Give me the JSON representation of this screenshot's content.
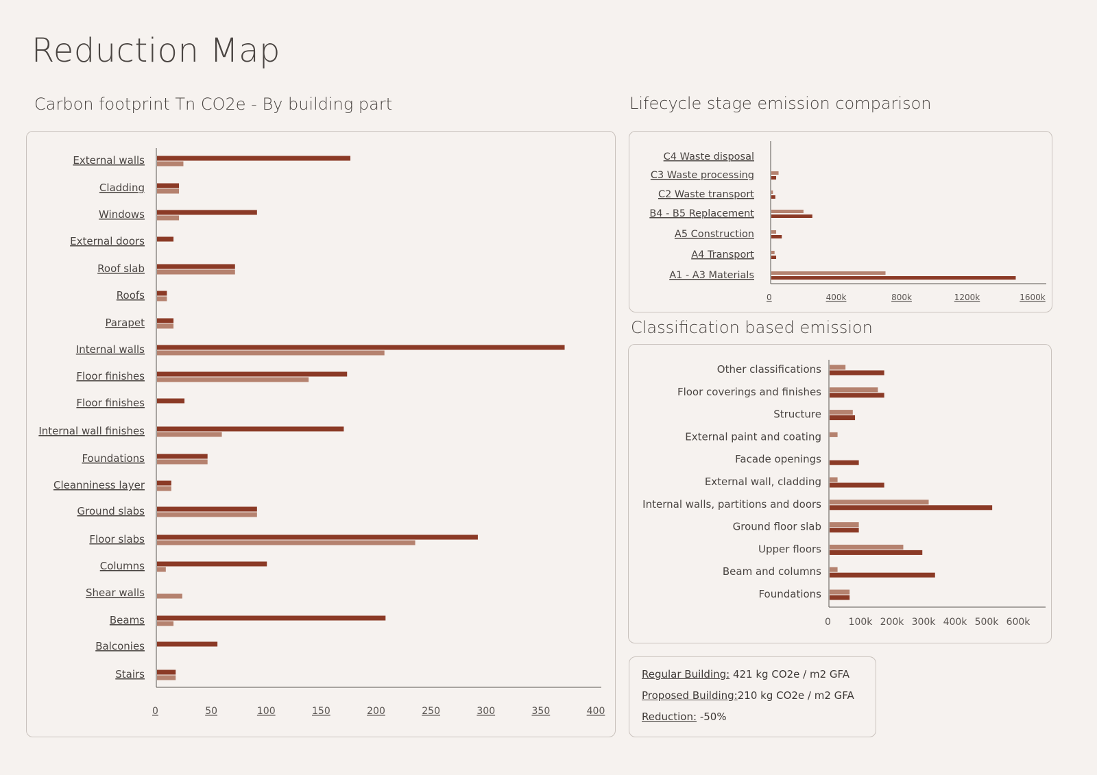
{
  "page": {
    "title": "Reduction Map"
  },
  "colors": {
    "regular": "#8b3a26",
    "proposed": "#b5826f",
    "axis": "#5a5552",
    "label": "#4a4542",
    "background": "#f6f2ef"
  },
  "sections": {
    "building_part_title": "Carbon footprint Tn CO2e - By building part",
    "lifecycle_title": "Lifecycle stage emission comparison",
    "classification_title": "Classification based emission"
  },
  "summary": {
    "regular_label": "Regular Building:",
    "regular_value": " 421 kg CO2e / m2 GFA",
    "proposed_label": "Proposed Building:",
    "proposed_value": "210 kg CO2e / m2 GFA",
    "reduction_label": "Reduction:",
    "reduction_value": " -50%"
  },
  "chart_data": [
    {
      "id": "building-part",
      "type": "bar",
      "orientation": "horizontal",
      "title": "Carbon footprint Tn CO2e - By building part",
      "categories": [
        "External walls",
        "Cladding",
        "Windows",
        "External doors",
        "Roof slab",
        "Roofs",
        "Parapet",
        "Internal walls",
        "Floor finishes",
        "Floor finishes",
        "Internal wall finishes",
        "Foundations",
        "Cleanniness layer",
        "Ground slabs",
        "Floor slabs",
        "Columns",
        "Shear walls",
        "Beams",
        "Balconies",
        "Stairs"
      ],
      "series": [
        {
          "name": "Regular",
          "values": [
            176,
            20,
            91,
            15,
            71,
            9,
            15,
            371,
            173,
            25,
            170,
            46,
            13,
            91,
            292,
            100,
            0,
            208,
            55,
            17
          ]
        },
        {
          "name": "Proposed",
          "values": [
            24,
            20,
            20,
            0,
            71,
            9,
            15,
            207,
            138,
            0,
            59,
            46,
            13,
            91,
            235,
            8,
            23,
            15,
            0,
            17
          ]
        }
      ],
      "xlim": [
        0,
        400
      ],
      "xticks": [
        "0",
        "50",
        "100",
        "150",
        "200",
        "250",
        "300",
        "350",
        "400"
      ]
    },
    {
      "id": "lifecycle",
      "type": "bar",
      "orientation": "horizontal",
      "title": "Lifecycle stage emission comparison",
      "categories": [
        "C4 Waste disposal",
        "C3 Waste processing",
        "C2 Waste transport",
        "B4 - B5 Replacement",
        "A5 Construction",
        "A4 Transport",
        "A1 - A3 Materials"
      ],
      "series": [
        {
          "name": "Proposed",
          "values": [
            0,
            45,
            10,
            200,
            30,
            20,
            710
          ]
        },
        {
          "name": "Regular",
          "values": [
            0,
            30,
            25,
            255,
            65,
            30,
            1520
          ]
        }
      ],
      "xlim": [
        0,
        1680
      ],
      "xticks": [
        "0",
        "400k",
        "800k",
        "1200k",
        "1600k"
      ]
    },
    {
      "id": "classification",
      "type": "bar",
      "orientation": "horizontal",
      "title": "Classification based emission",
      "categories": [
        "Other classifications",
        "Floor coverings and finishes",
        "Structure",
        "External paint and coating",
        "Facade openings",
        "External wall, cladding",
        "Internal walls, partitions and doors",
        "Ground floor slab",
        "Upper floors",
        "Beam and columns",
        "Foundations"
      ],
      "series": [
        {
          "name": "Proposed",
          "values": [
            50,
            152,
            73,
            25,
            0,
            25,
            312,
            92,
            232,
            25,
            63
          ]
        },
        {
          "name": "Regular",
          "values": [
            172,
            172,
            80,
            0,
            92,
            172,
            512,
            92,
            292,
            332,
            63
          ]
        }
      ],
      "xlim": [
        0,
        665
      ],
      "xticks": [
        "0",
        "100k",
        "200k",
        "300k",
        "400k",
        "500k",
        "600k"
      ]
    }
  ]
}
